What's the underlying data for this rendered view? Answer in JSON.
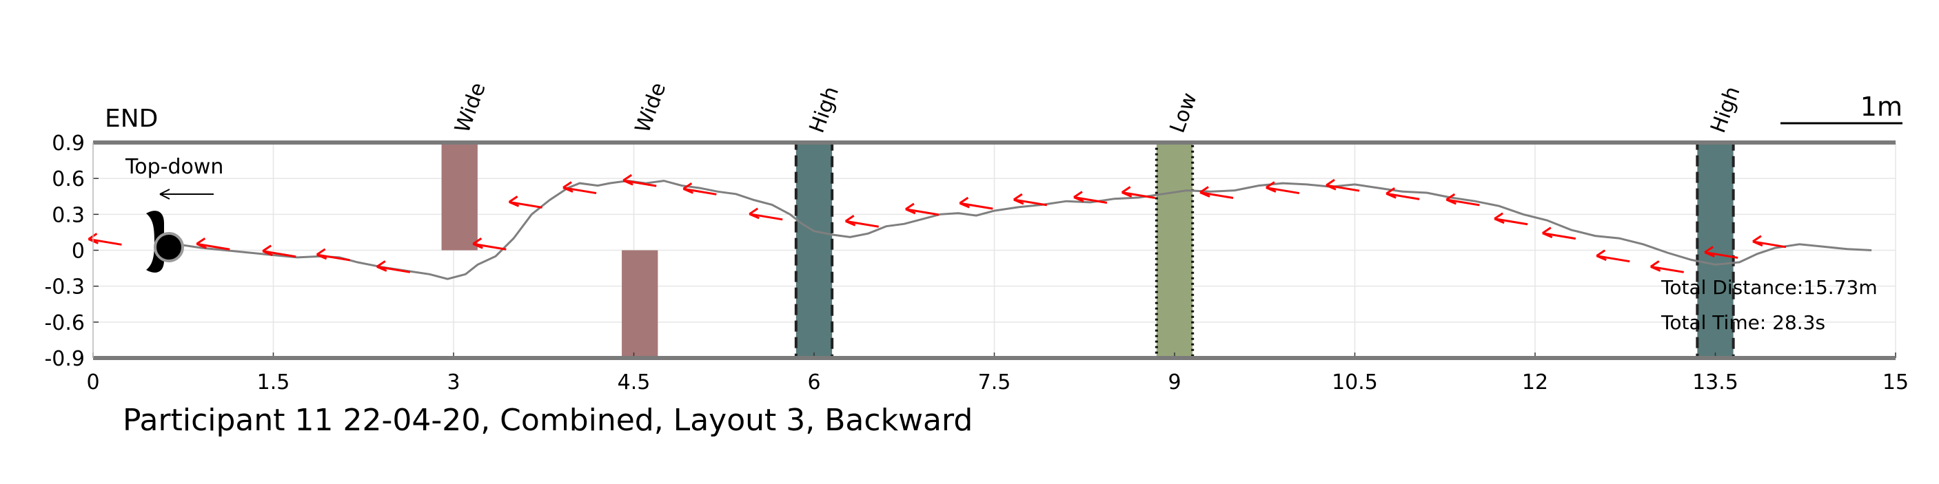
{
  "chart_data": {
    "type": "line",
    "title": "Participant 11 22-04-20, Combined, Layout 3, Backward",
    "xlim": [
      0,
      15
    ],
    "ylim": [
      -0.9,
      0.9
    ],
    "x_ticks": [
      "0",
      "1.5",
      "3",
      "4.5",
      "6",
      "7.5",
      "9",
      "10.5",
      "12",
      "13.5",
      "15"
    ],
    "y_ticks": [
      "0.9",
      "0.6",
      "0.3",
      "0",
      "-0.3",
      "-0.6",
      "-0.9"
    ],
    "grid": true,
    "end_label": "END",
    "scale_bar_label": "1m",
    "inset_label": "Top-down",
    "total_distance": "Total Distance:15.73m",
    "total_time": "Total Time: 28.3s",
    "path": {
      "color": "#7f7f7f",
      "points": [
        [
          0.7,
          0.05
        ],
        [
          0.9,
          0.02
        ],
        [
          1.1,
          0.0
        ],
        [
          1.3,
          -0.02
        ],
        [
          1.5,
          -0.04
        ],
        [
          1.7,
          -0.06
        ],
        [
          1.9,
          -0.05
        ],
        [
          2.05,
          -0.06
        ],
        [
          2.2,
          -0.1
        ],
        [
          2.4,
          -0.14
        ],
        [
          2.6,
          -0.17
        ],
        [
          2.8,
          -0.2
        ],
        [
          2.95,
          -0.24
        ],
        [
          3.1,
          -0.2
        ],
        [
          3.2,
          -0.12
        ],
        [
          3.35,
          -0.05
        ],
        [
          3.5,
          0.1
        ],
        [
          3.65,
          0.3
        ],
        [
          3.8,
          0.42
        ],
        [
          3.95,
          0.52
        ],
        [
          4.05,
          0.56
        ],
        [
          4.2,
          0.54
        ],
        [
          4.3,
          0.56
        ],
        [
          4.45,
          0.58
        ],
        [
          4.6,
          0.56
        ],
        [
          4.75,
          0.58
        ],
        [
          4.9,
          0.54
        ],
        [
          5.05,
          0.52
        ],
        [
          5.2,
          0.49
        ],
        [
          5.35,
          0.47
        ],
        [
          5.5,
          0.42
        ],
        [
          5.65,
          0.38
        ],
        [
          5.8,
          0.3
        ],
        [
          5.9,
          0.22
        ],
        [
          6.0,
          0.16
        ],
        [
          6.15,
          0.13
        ],
        [
          6.3,
          0.11
        ],
        [
          6.45,
          0.14
        ],
        [
          6.6,
          0.2
        ],
        [
          6.75,
          0.22
        ],
        [
          6.9,
          0.26
        ],
        [
          7.05,
          0.3
        ],
        [
          7.2,
          0.31
        ],
        [
          7.35,
          0.29
        ],
        [
          7.5,
          0.33
        ],
        [
          7.7,
          0.36
        ],
        [
          7.9,
          0.38
        ],
        [
          8.1,
          0.41
        ],
        [
          8.3,
          0.4
        ],
        [
          8.5,
          0.43
        ],
        [
          8.7,
          0.44
        ],
        [
          8.9,
          0.47
        ],
        [
          9.1,
          0.5
        ],
        [
          9.3,
          0.49
        ],
        [
          9.5,
          0.5
        ],
        [
          9.7,
          0.54
        ],
        [
          9.9,
          0.56
        ],
        [
          10.1,
          0.55
        ],
        [
          10.3,
          0.53
        ],
        [
          10.5,
          0.55
        ],
        [
          10.7,
          0.52
        ],
        [
          10.9,
          0.49
        ],
        [
          11.1,
          0.48
        ],
        [
          11.3,
          0.44
        ],
        [
          11.5,
          0.41
        ],
        [
          11.7,
          0.37
        ],
        [
          11.9,
          0.3
        ],
        [
          12.1,
          0.25
        ],
        [
          12.3,
          0.17
        ],
        [
          12.5,
          0.12
        ],
        [
          12.7,
          0.1
        ],
        [
          12.9,
          0.05
        ],
        [
          13.1,
          -0.02
        ],
        [
          13.3,
          -0.08
        ],
        [
          13.5,
          -0.12
        ],
        [
          13.7,
          -0.1
        ],
        [
          13.85,
          -0.03
        ],
        [
          14.0,
          0.02
        ],
        [
          14.2,
          0.05
        ],
        [
          14.4,
          0.03
        ],
        [
          14.6,
          0.01
        ],
        [
          14.8,
          0.0
        ]
      ]
    },
    "heading_arrows": {
      "color": "#ff0000",
      "points": [
        [
          0.1,
          0.07
        ],
        [
          1.0,
          0.03
        ],
        [
          1.55,
          -0.03
        ],
        [
          2.0,
          -0.06
        ],
        [
          2.5,
          -0.16
        ],
        [
          3.3,
          0.03
        ],
        [
          3.6,
          0.38
        ],
        [
          4.05,
          0.5
        ],
        [
          4.55,
          0.56
        ],
        [
          5.05,
          0.49
        ],
        [
          5.6,
          0.28
        ],
        [
          6.4,
          0.22
        ],
        [
          6.9,
          0.32
        ],
        [
          7.35,
          0.37
        ],
        [
          7.8,
          0.4
        ],
        [
          8.3,
          0.42
        ],
        [
          8.7,
          0.46
        ],
        [
          9.35,
          0.46
        ],
        [
          9.9,
          0.5
        ],
        [
          10.4,
          0.52
        ],
        [
          10.9,
          0.45
        ],
        [
          11.4,
          0.4
        ],
        [
          11.8,
          0.24
        ],
        [
          12.2,
          0.12
        ],
        [
          12.65,
          -0.07
        ],
        [
          13.1,
          -0.16
        ],
        [
          13.55,
          -0.04
        ],
        [
          13.95,
          0.05
        ]
      ]
    },
    "obstacles": [
      {
        "label": "Wide",
        "x0": 2.9,
        "x1": 3.2,
        "y0": 0.0,
        "y1": 0.9,
        "fill": "#a67777",
        "border": "none"
      },
      {
        "label": "Wide",
        "x0": 4.4,
        "x1": 4.7,
        "y0": -0.9,
        "y1": 0.0,
        "fill": "#a67777",
        "border": "none"
      },
      {
        "label": "High",
        "x0": 5.85,
        "x1": 6.15,
        "y0": -0.9,
        "y1": 0.9,
        "fill": "#587a7a",
        "border": "dashed"
      },
      {
        "label": "Low",
        "x0": 8.85,
        "x1": 9.15,
        "y0": -0.9,
        "y1": 0.9,
        "fill": "#97a67a",
        "border": "dotted"
      },
      {
        "label": "High",
        "x0": 13.35,
        "x1": 13.65,
        "y0": -0.9,
        "y1": 0.9,
        "fill": "#587a7a",
        "border": "dashed"
      }
    ]
  }
}
